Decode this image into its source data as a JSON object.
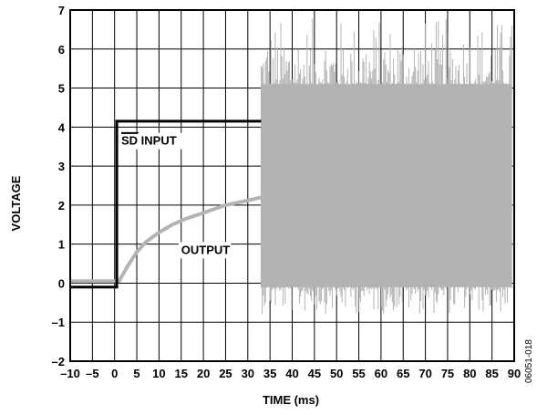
{
  "chart_data": {
    "type": "line",
    "xlabel": "TIME (ms)",
    "ylabel": "VOLTAGE",
    "xlim": [
      -10,
      90
    ],
    "ylim": [
      -2,
      7
    ],
    "xticks": [
      -10,
      -5,
      0,
      5,
      10,
      15,
      20,
      25,
      30,
      35,
      40,
      45,
      50,
      55,
      60,
      65,
      70,
      75,
      80,
      85,
      90
    ],
    "xtick_labels": [
      "–10",
      "–5",
      "0",
      "5",
      "10",
      "15",
      "20",
      "25",
      "30",
      "35",
      "40",
      "45",
      "50",
      "55",
      "60",
      "65",
      "70",
      "75",
      "80",
      "85",
      "90"
    ],
    "yticks": [
      -2,
      -1,
      0,
      1,
      2,
      3,
      4,
      5,
      6,
      7
    ],
    "ytick_labels": [
      "–2",
      "–1",
      "0",
      "1",
      "2",
      "3",
      "4",
      "5",
      "6",
      "7"
    ],
    "grid": true,
    "series": [
      {
        "label": "SD INPUT",
        "color": "#000000",
        "points": [
          [
            -10,
            -0.1
          ],
          [
            0.5,
            -0.1
          ],
          [
            0.5,
            4.15
          ],
          [
            33,
            4.15
          ]
        ]
      },
      {
        "label": "OUTPUT",
        "color": "#b3b3b3",
        "points": [
          [
            -10,
            0.05
          ],
          [
            1,
            0.05
          ],
          [
            3,
            0.45
          ],
          [
            5,
            0.8
          ],
          [
            7,
            1.05
          ],
          [
            10,
            1.3
          ],
          [
            13,
            1.5
          ],
          [
            16,
            1.65
          ],
          [
            20,
            1.8
          ],
          [
            25,
            2.0
          ],
          [
            30,
            2.12
          ],
          [
            33,
            2.2
          ]
        ],
        "noise_band": {
          "x_start": 33,
          "x_end": 89.5,
          "low": -0.1,
          "high": 5.1,
          "spike_low": -0.8,
          "spike_high": 6.8
        }
      }
    ],
    "annotations": [
      {
        "text": "INPUT",
        "overline_text": "SD",
        "x": 1.5,
        "y": 3.55
      },
      {
        "text": "OUTPUT",
        "x": 15,
        "y": 0.75
      }
    ],
    "figure_id": "06051-018"
  }
}
